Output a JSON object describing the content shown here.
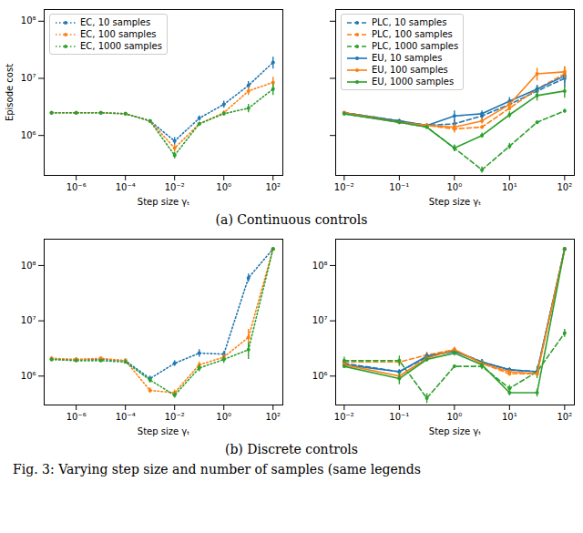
{
  "chart_data": [
    {
      "type": "line",
      "xlabel": "Step size γₜ",
      "ylabel": "Episode cost",
      "log": true,
      "legend": "upper left",
      "xlim": [
        5e-08,
        250
      ],
      "ylim": [
        200000.0,
        160000000.0
      ],
      "xticks": [
        {
          "value": 1e-06,
          "label": "10⁻⁶"
        },
        {
          "value": 0.0001,
          "label": "10⁻⁴"
        },
        {
          "value": 0.01,
          "label": "10⁻²"
        },
        {
          "value": 1,
          "label": "10⁰"
        },
        {
          "value": 100,
          "label": "10²"
        }
      ],
      "yticks": [
        {
          "value": 1000000.0,
          "label": "10⁶"
        },
        {
          "value": 10000000.0,
          "label": "10⁷"
        },
        {
          "value": 100000000.0,
          "label": "10⁸"
        }
      ],
      "x": [
        1e-07,
        1e-06,
        1e-05,
        0.0001,
        0.001,
        0.01,
        0.1,
        1,
        10,
        100
      ],
      "series": [
        {
          "name": "EC, 10 samples",
          "color": "#1f77b4",
          "line_style": "dotted",
          "marker": "circle",
          "values": [
            2500000.0,
            2500000.0,
            2500000.0,
            2400000.0,
            1800000.0,
            800000.0,
            2000000.0,
            3500000.0,
            7500000.0,
            19000000.0
          ],
          "errors": [
            80000.0,
            80000.0,
            80000.0,
            80000.0,
            80000.0,
            120000.0,
            200000.0,
            500000.0,
            1300000.0,
            4500000.0
          ]
        },
        {
          "name": "EC, 100 samples",
          "color": "#ff7f0e",
          "line_style": "dotted",
          "marker": "circle",
          "values": [
            2500000.0,
            2500000.0,
            2500000.0,
            2400000.0,
            1800000.0,
            600000.0,
            1600000.0,
            2500000.0,
            6000000.0,
            8500000.0
          ],
          "errors": [
            50000.0,
            50000.0,
            50000.0,
            50000.0,
            50000.0,
            80000.0,
            100000.0,
            200000.0,
            1000000.0,
            2000000.0
          ]
        },
        {
          "name": "EC, 1000 samples",
          "color": "#2ca02c",
          "line_style": "dotted",
          "marker": "circle",
          "values": [
            2500000.0,
            2500000.0,
            2500000.0,
            2400000.0,
            1800000.0,
            450000.0,
            1600000.0,
            2400000.0,
            3000000.0,
            6500000.0
          ],
          "errors": [
            40000.0,
            40000.0,
            40000.0,
            40000.0,
            40000.0,
            60000.0,
            100000.0,
            200000.0,
            500000.0,
            1500000.0
          ]
        }
      ]
    },
    {
      "type": "line",
      "xlabel": "Step size γₜ",
      "log": true,
      "legend": "upper left",
      "tick_labels": "x",
      "xlim": [
        0.007,
        150
      ],
      "ylim": [
        200000.0,
        160000000.0
      ],
      "xticks": [
        {
          "value": 0.01,
          "label": "10⁻²"
        },
        {
          "value": 0.1,
          "label": "10⁻¹"
        },
        {
          "value": 1,
          "label": "10⁰"
        },
        {
          "value": 10,
          "label": "10¹"
        },
        {
          "value": 100,
          "label": "10²"
        }
      ],
      "yticks": [
        {
          "value": 1000000.0,
          "label": "10⁶"
        },
        {
          "value": 10000000.0,
          "label": "10⁷"
        },
        {
          "value": 100000000.0,
          "label": "10⁸"
        }
      ],
      "x": [
        0.01,
        0.1,
        0.316,
        1,
        3.16,
        10,
        31.6,
        100
      ],
      "series": [
        {
          "name": "PLC, 10 samples",
          "color": "#1f77b4",
          "line_style": "dashed",
          "marker": "circle",
          "values": [
            2500000.0,
            1800000.0,
            1500000.0,
            1600000.0,
            2200000.0,
            3500000.0,
            6000000.0,
            10000000.0
          ],
          "errors": [
            100000.0,
            100000.0,
            100000.0,
            300000.0,
            300000.0,
            500000.0,
            1500000.0,
            3000000.0
          ]
        },
        {
          "name": "PLC, 100 samples",
          "color": "#ff7f0e",
          "line_style": "dashed",
          "marker": "circle",
          "values": [
            2500000.0,
            1800000.0,
            1500000.0,
            1300000.0,
            1400000.0,
            3000000.0,
            6500000.0,
            12000000.0
          ],
          "errors": [
            100000.0,
            100000.0,
            100000.0,
            200000.0,
            100000.0,
            300000.0,
            1000000.0,
            4000000.0
          ]
        },
        {
          "name": "PLC, 1000 samples",
          "color": "#2ca02c",
          "line_style": "dashed",
          "marker": "circle",
          "values": [
            2400000.0,
            1700000.0,
            1400000.0,
            600000.0,
            250000.0,
            650000.0,
            1700000.0,
            2700000.0
          ],
          "errors": [
            100000.0,
            100000.0,
            100000.0,
            80000.0,
            30000.0,
            80000.0,
            100000.0,
            200000.0
          ]
        },
        {
          "name": "EU, 10 samples",
          "color": "#1f77b4",
          "line_style": "solid",
          "marker": "circle",
          "values": [
            2500000.0,
            1800000.0,
            1500000.0,
            2200000.0,
            2400000.0,
            4000000.0,
            6500000.0,
            11000000.0
          ],
          "errors": [
            100000.0,
            100000.0,
            100000.0,
            500000.0,
            300000.0,
            600000.0,
            1000000.0,
            3000000.0
          ]
        },
        {
          "name": "EU, 100 samples",
          "color": "#ff7f0e",
          "line_style": "solid",
          "marker": "circle",
          "values": [
            2500000.0,
            1700000.0,
            1500000.0,
            1400000.0,
            1800000.0,
            3500000.0,
            12000000.0,
            13000000.0
          ],
          "errors": [
            100000.0,
            100000.0,
            100000.0,
            200000.0,
            200000.0,
            400000.0,
            3000000.0,
            3000000.0
          ]
        },
        {
          "name": "EU, 1000 samples",
          "color": "#2ca02c",
          "line_style": "solid",
          "marker": "circle",
          "values": [
            2400000.0,
            1700000.0,
            1400000.0,
            600000.0,
            1000000.0,
            2300000.0,
            5000000.0,
            6000000.0
          ],
          "errors": [
            100000.0,
            100000.0,
            100000.0,
            80000.0,
            100000.0,
            300000.0,
            1000000.0,
            1500000.0
          ]
        }
      ]
    },
    {
      "type": "line",
      "xlabel": "Step size γₜ",
      "log": true,
      "xlim": [
        5e-08,
        250
      ],
      "ylim": [
        300000.0,
        300000000.0
      ],
      "xticks": [
        {
          "value": 1e-06,
          "label": "10⁻⁶"
        },
        {
          "value": 0.0001,
          "label": "10⁻⁴"
        },
        {
          "value": 0.01,
          "label": "10⁻²"
        },
        {
          "value": 1,
          "label": "10⁰"
        },
        {
          "value": 100,
          "label": "10²"
        }
      ],
      "yticks": [
        {
          "value": 1000000.0,
          "label": "10⁶"
        },
        {
          "value": 10000000.0,
          "label": "10⁷"
        },
        {
          "value": 100000000.0,
          "label": "10⁸"
        }
      ],
      "x": [
        1e-07,
        1e-06,
        1e-05,
        0.0001,
        0.001,
        0.01,
        0.1,
        1,
        10,
        100
      ],
      "series": [
        {
          "name": "EC, 10 samples",
          "color": "#1f77b4",
          "line_style": "dotted",
          "marker": "circle",
          "values": [
            2000000.0,
            2000000.0,
            2000000.0,
            1900000.0,
            900000.0,
            1700000.0,
            2600000.0,
            2500000.0,
            60000000.0,
            200000000.0
          ],
          "errors": [
            150000.0,
            150000.0,
            150000.0,
            150000.0,
            100000.0,
            200000.0,
            400000.0,
            300000.0,
            10000000.0,
            10000000.0
          ]
        },
        {
          "name": "EC, 100 samples",
          "color": "#ff7f0e",
          "line_style": "dotted",
          "marker": "circle",
          "values": [
            2100000.0,
            2000000.0,
            2100000.0,
            1900000.0,
            550000.0,
            500000.0,
            1600000.0,
            2200000.0,
            5000000.0,
            200000000.0
          ],
          "errors": [
            150000.0,
            150000.0,
            150000.0,
            150000.0,
            60000.0,
            60000.0,
            200000.0,
            300000.0,
            2000000.0,
            10000000.0
          ]
        },
        {
          "name": "EC, 1000 samples",
          "color": "#2ca02c",
          "line_style": "dotted",
          "marker": "circle",
          "values": [
            2000000.0,
            1900000.0,
            1900000.0,
            1800000.0,
            850000.0,
            450000.0,
            1400000.0,
            2000000.0,
            3000000.0,
            200000000.0
          ],
          "errors": [
            100000.0,
            100000.0,
            100000.0,
            100000.0,
            100000.0,
            50000.0,
            200000.0,
            300000.0,
            1000000.0,
            10000000.0
          ]
        }
      ]
    },
    {
      "type": "line",
      "xlabel": "Step size γₜ",
      "log": true,
      "xlim": [
        0.007,
        150
      ],
      "ylim": [
        300000.0,
        300000000.0
      ],
      "xticks": [
        {
          "value": 0.01,
          "label": "10⁻²"
        },
        {
          "value": 0.1,
          "label": "10⁻¹"
        },
        {
          "value": 1,
          "label": "10⁰"
        },
        {
          "value": 10,
          "label": "10¹"
        },
        {
          "value": 100,
          "label": "10²"
        }
      ],
      "yticks": [
        {
          "value": 1000000.0,
          "label": "10⁶"
        },
        {
          "value": 10000000.0,
          "label": "10⁷"
        },
        {
          "value": 100000000.0,
          "label": "10⁸"
        }
      ],
      "x": [
        0.01,
        0.1,
        0.316,
        1,
        3.16,
        10,
        31.6,
        100
      ],
      "series": [
        {
          "name": "PLC, 10 samples",
          "color": "#1f77b4",
          "line_style": "dashed",
          "marker": "circle",
          "values": [
            1700000.0,
            1200000.0,
            2200000.0,
            2900000.0,
            1800000.0,
            1300000.0,
            1200000.0,
            200000000.0
          ],
          "errors": [
            100000.0,
            100000.0,
            300000.0,
            300000.0,
            200000.0,
            100000.0,
            100000.0,
            10000000.0
          ]
        },
        {
          "name": "PLC, 100 samples",
          "color": "#ff7f0e",
          "line_style": "dashed",
          "marker": "circle",
          "values": [
            1800000.0,
            1800000.0,
            2400000.0,
            3000000.0,
            1700000.0,
            1100000.0,
            1100000.0,
            200000000.0
          ],
          "errors": [
            100000.0,
            200000.0,
            300000.0,
            300000.0,
            200000.0,
            100000.0,
            100000.0,
            10000000.0
          ]
        },
        {
          "name": "PLC, 1000 samples",
          "color": "#2ca02c",
          "line_style": "dashed",
          "marker": "circle",
          "values": [
            1900000.0,
            1900000.0,
            400000.0,
            1500000.0,
            1500000.0,
            600000.0,
            1200000.0,
            6000000.0
          ],
          "errors": [
            300000.0,
            400000.0,
            80000.0,
            100000.0,
            200000.0,
            80000.0,
            300000.0,
            1000000.0
          ]
        },
        {
          "name": "EU, 10 samples",
          "color": "#1f77b4",
          "line_style": "solid",
          "marker": "circle",
          "values": [
            1600000.0,
            1200000.0,
            2300000.0,
            2800000.0,
            1800000.0,
            1300000.0,
            1200000.0,
            200000000.0
          ],
          "errors": [
            100000.0,
            100000.0,
            300000.0,
            300000.0,
            200000.0,
            100000.0,
            100000.0,
            10000000.0
          ]
        },
        {
          "name": "EU, 100 samples",
          "color": "#ff7f0e",
          "line_style": "solid",
          "marker": "circle",
          "values": [
            1600000.0,
            1000000.0,
            2100000.0,
            3000000.0,
            1700000.0,
            1200000.0,
            1100000.0,
            200000000.0
          ],
          "errors": [
            100000.0,
            100000.0,
            200000.0,
            300000.0,
            200000.0,
            100000.0,
            100000.0,
            10000000.0
          ]
        },
        {
          "name": "EU, 1000 samples",
          "color": "#2ca02c",
          "line_style": "solid",
          "marker": "circle",
          "values": [
            1500000.0,
            900000.0,
            2000000.0,
            2600000.0,
            1600000.0,
            500000.0,
            500000.0,
            200000000.0
          ],
          "errors": [
            100000.0,
            200000.0,
            200000.0,
            300000.0,
            200000.0,
            60000.0,
            80000.0,
            10000000.0
          ]
        }
      ]
    }
  ],
  "panel_captions": [
    "(a) Continuous controls",
    "(b) Discrete controls"
  ],
  "caption": "Fig. 3: Varying step size and number of samples (same legends"
}
